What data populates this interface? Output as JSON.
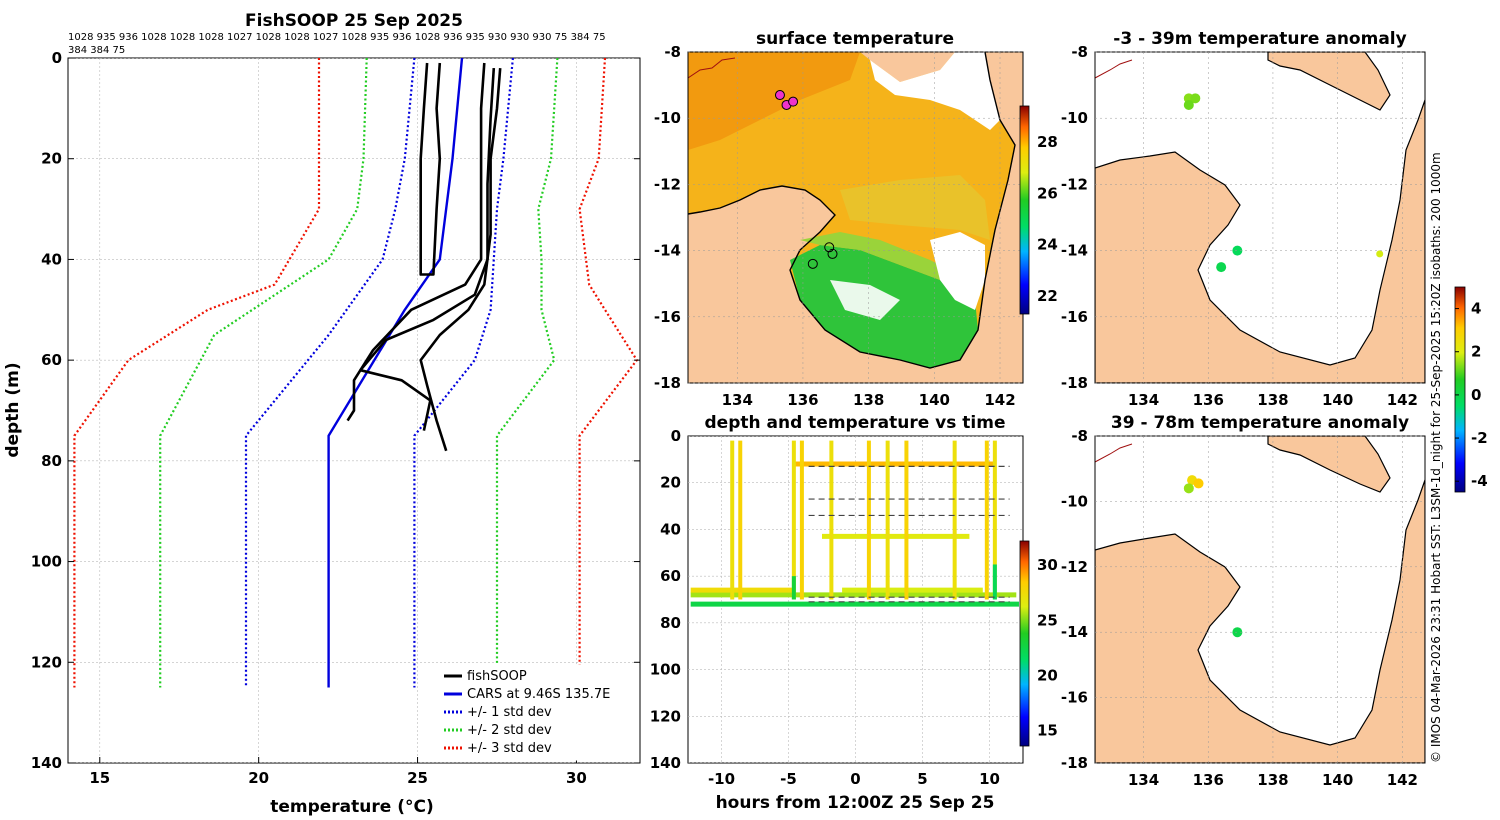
{
  "figure": {
    "credit": "© IMOS 04-Mar-2026 23:31 Hobart SST: L3SM-1d_night for 25-Sep-2025 15:20Z isobaths: 200  1000m"
  },
  "chart_data": [
    {
      "id": "profile",
      "type": "line",
      "title": "FishSOOP 25 Sep 2025",
      "subtitle_line1": "1028 935 936 1028 1028 1028 1027 1028 1028 1027 1028 935 936 1028 936 935 930 930 930 75 384 75",
      "subtitle_line2": "384 384 75",
      "xlabel": "temperature (°C)",
      "ylabel": "depth (m)",
      "xlim": [
        14,
        32
      ],
      "ylim": [
        0,
        140
      ],
      "y_reversed": true,
      "xticks": [
        "15",
        "20",
        "25",
        "30"
      ],
      "yticks": [
        "0",
        "20",
        "40",
        "60",
        "80",
        "100",
        "120",
        "140"
      ],
      "legend": [
        "fishSOOP",
        "CARS at 9.46S 135.7E",
        "+/- 1 std dev",
        "+/- 2 std dev",
        "+/- 3 std dev"
      ],
      "series": [
        {
          "name": "CARS mean",
          "color": "#0000dd",
          "style": "solid",
          "points": [
            [
              26.4,
              0
            ],
            [
              26.1,
              20
            ],
            [
              25.7,
              40
            ],
            [
              24.6,
              50
            ],
            [
              22.2,
              75
            ],
            [
              22.2,
              125
            ]
          ]
        },
        {
          "name": "-1 std",
          "color": "#0000dd",
          "style": "dotted",
          "points": [
            [
              24.9,
              0
            ],
            [
              24.6,
              20
            ],
            [
              24.3,
              30
            ],
            [
              23.9,
              40
            ],
            [
              22.2,
              55
            ],
            [
              19.6,
              75
            ],
            [
              19.6,
              125
            ]
          ]
        },
        {
          "name": "+1 std",
          "color": "#0000dd",
          "style": "dotted",
          "points": [
            [
              28.0,
              0
            ],
            [
              27.7,
              20
            ],
            [
              27.5,
              30
            ],
            [
              27.4,
              40
            ],
            [
              27.3,
              50
            ],
            [
              26.8,
              60
            ],
            [
              24.9,
              75
            ],
            [
              24.9,
              125
            ]
          ]
        },
        {
          "name": "-2 std",
          "color": "#22cc22",
          "style": "dotted",
          "points": [
            [
              23.4,
              0
            ],
            [
              23.3,
              20
            ],
            [
              23.1,
              30
            ],
            [
              22.2,
              40
            ],
            [
              18.6,
              55
            ],
            [
              16.9,
              75
            ],
            [
              16.9,
              125
            ]
          ]
        },
        {
          "name": "+2 std",
          "color": "#22cc22",
          "style": "dotted",
          "points": [
            [
              29.4,
              0
            ],
            [
              29.2,
              20
            ],
            [
              28.8,
              30
            ],
            [
              28.9,
              40
            ],
            [
              28.9,
              50
            ],
            [
              29.3,
              60
            ],
            [
              27.5,
              75
            ],
            [
              27.5,
              125
            ]
          ]
        },
        {
          "name": "-3 std",
          "color": "#ee1100",
          "style": "dotted",
          "points": [
            [
              21.9,
              0
            ],
            [
              21.9,
              20
            ],
            [
              21.9,
              30
            ],
            [
              20.5,
              45
            ],
            [
              18.4,
              50
            ],
            [
              15.9,
              60
            ],
            [
              14.2,
              75
            ],
            [
              14.2,
              125
            ]
          ]
        },
        {
          "name": "+3 std",
          "color": "#ee1100",
          "style": "dotted",
          "points": [
            [
              30.9,
              0
            ],
            [
              30.7,
              20
            ],
            [
              30.1,
              30
            ],
            [
              30.4,
              45
            ],
            [
              30.9,
              50
            ],
            [
              31.9,
              60
            ],
            [
              30.1,
              75
            ],
            [
              30.1,
              125
            ]
          ]
        },
        {
          "name": "fishSOOP A",
          "color": "#000000",
          "style": "solid",
          "points": [
            [
              25.3,
              1
            ],
            [
              25.2,
              10
            ],
            [
              25.1,
              20
            ],
            [
              25.1,
              30
            ],
            [
              25.1,
              43
            ],
            [
              25.5,
              43
            ],
            [
              25.6,
              30
            ],
            [
              25.7,
              20
            ],
            [
              25.6,
              10
            ],
            [
              25.7,
              1
            ]
          ]
        },
        {
          "name": "fishSOOP B",
          "color": "#000000",
          "style": "solid",
          "points": [
            [
              27.1,
              1
            ],
            [
              27.0,
              10
            ],
            [
              27.0,
              20
            ],
            [
              27.0,
              30
            ],
            [
              27.0,
              40
            ],
            [
              26.5,
              45
            ],
            [
              24.8,
              50
            ],
            [
              23.6,
              58
            ],
            [
              23.0,
              64
            ],
            [
              23.0,
              70
            ],
            [
              22.8,
              72
            ]
          ]
        },
        {
          "name": "fishSOOP C",
          "color": "#000000",
          "style": "solid",
          "points": [
            [
              27.6,
              2
            ],
            [
              27.5,
              10
            ],
            [
              27.3,
              20
            ],
            [
              27.3,
              35
            ],
            [
              27.1,
              45
            ],
            [
              26.6,
              50
            ],
            [
              25.7,
              55
            ],
            [
              25.1,
              60
            ],
            [
              25.3,
              65
            ],
            [
              25.6,
              72
            ],
            [
              25.9,
              78
            ]
          ]
        },
        {
          "name": "fishSOOP D",
          "color": "#000000",
          "style": "solid",
          "points": [
            [
              27.4,
              2
            ],
            [
              27.3,
              12
            ],
            [
              27.2,
              25
            ],
            [
              27.2,
              40
            ],
            [
              26.8,
              47
            ],
            [
              25.5,
              52
            ],
            [
              24.0,
              56
            ],
            [
              23.2,
              62
            ],
            [
              24.5,
              64
            ],
            [
              25.4,
              68
            ],
            [
              25.2,
              74
            ]
          ]
        }
      ]
    },
    {
      "id": "surface",
      "type": "heatmap",
      "title": "surface temperature",
      "xticks": [
        "134",
        "136",
        "138",
        "140",
        "142"
      ],
      "yticks": [
        "-8",
        "-10",
        "-12",
        "-14",
        "-16",
        "-18"
      ],
      "xlim": [
        132.5,
        142.7
      ],
      "ylim": [
        -18,
        -8
      ],
      "colorbar_ticks": [
        "22",
        "24",
        "26",
        "28"
      ],
      "colorbar_range": [
        21.3,
        29.4
      ],
      "stations": [
        [
          135.3,
          -9.3
        ],
        [
          135.5,
          -9.6
        ],
        [
          135.7,
          -9.5
        ],
        [
          136.8,
          -13.9
        ],
        [
          136.3,
          -14.4
        ],
        [
          136.9,
          -14.1
        ]
      ]
    },
    {
      "id": "timeseries",
      "type": "scatter",
      "title": "depth and temperature vs time",
      "xlabel": "hours from 12:00Z 25 Sep 25",
      "xticks": [
        "-10",
        "-5",
        "0",
        "5",
        "10"
      ],
      "yticks": [
        "0",
        "20",
        "40",
        "60",
        "80",
        "100",
        "120",
        "140"
      ],
      "xlim": [
        -12.5,
        12.5
      ],
      "ylim": [
        0,
        140
      ],
      "colorbar_ticks": [
        "15",
        "20",
        "25",
        "30"
      ],
      "colorbar_range": [
        13.6,
        32.2
      ],
      "dashed_levels": [
        13,
        27,
        34,
        69,
        71
      ]
    },
    {
      "id": "anom_shallow",
      "type": "scatter",
      "title": "-3 - 39m temperature anomaly",
      "xticks": [
        "134",
        "136",
        "138",
        "140",
        "142"
      ],
      "yticks": [
        "-8",
        "-10",
        "-12",
        "-14",
        "-16",
        "-18"
      ],
      "points": [
        [
          135.4,
          -9.4,
          1.4
        ],
        [
          135.6,
          -9.4,
          1.3
        ],
        [
          135.4,
          -9.6,
          1.2
        ],
        [
          136.9,
          -14.0,
          -0.3
        ],
        [
          136.4,
          -14.5,
          -0.1
        ],
        [
          141.3,
          -14.1,
          1.9
        ]
      ]
    },
    {
      "id": "anom_deep",
      "type": "scatter",
      "title": "39 - 78m temperature anomaly",
      "xticks": [
        "134",
        "136",
        "138",
        "140",
        "142"
      ],
      "yticks": [
        "-8",
        "-10",
        "-12",
        "-14",
        "-16",
        "-18"
      ],
      "colorbar_ticks": [
        "-4",
        "-2",
        "0",
        "2",
        "4"
      ],
      "colorbar_range": [
        -4.5,
        5.0
      ],
      "points": [
        [
          135.5,
          -9.35,
          2.6
        ],
        [
          135.7,
          -9.45,
          3.1
        ],
        [
          135.4,
          -9.6,
          1.5
        ],
        [
          136.9,
          -14.0,
          0.0
        ]
      ]
    }
  ]
}
